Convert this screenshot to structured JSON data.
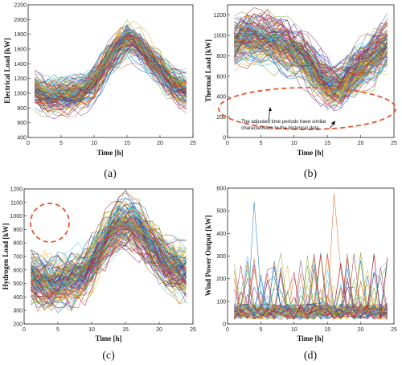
{
  "figure": {
    "captions": [
      "(a)",
      "(b)",
      "(c)",
      "(d)"
    ]
  },
  "chart_data": [
    {
      "type": "line",
      "panel": "(a)",
      "xlabel": "Time [h]",
      "ylabel": "Electrical Load [kW]",
      "xlim": [
        0,
        25
      ],
      "ylim": [
        400,
        2200
      ],
      "xticks": [
        "0",
        "5",
        "10",
        "15",
        "20",
        "25"
      ],
      "yticks": [
        "400",
        "600",
        "800",
        "1000",
        "1200",
        "1400",
        "1600",
        "1800",
        "2000",
        "2200"
      ],
      "x": [
        1,
        2,
        3,
        4,
        5,
        6,
        7,
        8,
        9,
        10,
        11,
        12,
        13,
        14,
        15,
        16,
        17,
        18,
        19,
        20,
        21,
        22,
        23,
        24
      ],
      "mean_profile": [
        1050,
        980,
        950,
        940,
        950,
        960,
        980,
        1000,
        1060,
        1150,
        1280,
        1420,
        1550,
        1650,
        1720,
        1700,
        1620,
        1520,
        1420,
        1320,
        1200,
        1120,
        1060,
        1020
      ],
      "spread": 300,
      "series_count": 120,
      "grid": false
    },
    {
      "type": "line",
      "panel": "(b)",
      "xlabel": "Time [h]",
      "ylabel": "Thermal Load [kW]",
      "xlim": [
        0,
        25
      ],
      "ylim": [
        0,
        1300
      ],
      "xticks": [
        "0",
        "5",
        "10",
        "15",
        "20",
        "25"
      ],
      "yticks": [
        "0",
        "200",
        "400",
        "600",
        "800",
        "1000",
        "1200"
      ],
      "x": [
        1,
        2,
        3,
        4,
        5,
        6,
        7,
        8,
        9,
        10,
        11,
        12,
        13,
        14,
        15,
        16,
        17,
        18,
        19,
        20,
        21,
        22,
        23,
        24
      ],
      "mean_profile": [
        920,
        960,
        980,
        970,
        960,
        950,
        930,
        900,
        860,
        820,
        780,
        720,
        650,
        580,
        520,
        480,
        500,
        560,
        620,
        680,
        740,
        800,
        860,
        900
      ],
      "spread": 300,
      "series_count": 120,
      "annotation": "The adjusted time periods have similar characteristics to the historical data",
      "grid": false
    },
    {
      "type": "line",
      "panel": "(c)",
      "xlabel": "Time [h]",
      "ylabel": "Hydrogen Load [kW]",
      "xlim": [
        0,
        25
      ],
      "ylim": [
        200,
        1200
      ],
      "xticks": [
        "0",
        "5",
        "10",
        "15",
        "20",
        "25"
      ],
      "yticks": [
        "200",
        "300",
        "400",
        "500",
        "600",
        "700",
        "800",
        "900",
        "1000",
        "1100",
        "1200"
      ],
      "x": [
        1,
        2,
        3,
        4,
        5,
        6,
        7,
        8,
        9,
        10,
        11,
        12,
        13,
        14,
        15,
        16,
        17,
        18,
        19,
        20,
        21,
        22,
        23,
        24
      ],
      "mean_profile": [
        560,
        520,
        500,
        490,
        500,
        510,
        520,
        540,
        580,
        640,
        720,
        800,
        870,
        920,
        950,
        940,
        900,
        840,
        780,
        720,
        660,
        620,
        590,
        570
      ],
      "spread": 260,
      "series_count": 120,
      "grid": false
    },
    {
      "type": "line",
      "panel": "(d)",
      "xlabel": "Time [h]",
      "ylabel": "Wind Power Output [kW]",
      "xlim": [
        0,
        25
      ],
      "ylim": [
        0,
        600
      ],
      "xticks": [
        "0",
        "5",
        "10",
        "15",
        "20",
        "25"
      ],
      "yticks": [
        "0",
        "100",
        "200",
        "300",
        "400",
        "500",
        "600"
      ],
      "x": [
        1,
        2,
        3,
        4,
        5,
        6,
        7,
        8,
        9,
        10,
        11,
        12,
        13,
        14,
        15,
        16,
        17,
        18,
        19,
        20,
        21,
        22,
        23,
        24
      ],
      "mean_profile": [
        40,
        40,
        40,
        40,
        40,
        40,
        40,
        40,
        40,
        40,
        40,
        40,
        40,
        40,
        40,
        40,
        40,
        40,
        40,
        40,
        40,
        40,
        40,
        40
      ],
      "spread": 120,
      "series_count": 60,
      "peak_values": [
        540,
        575
      ],
      "grid": false
    }
  ],
  "colors": {
    "axis": "#222222",
    "annotation_ellipse": "#e8552a",
    "palette": [
      "#0072bd",
      "#d95319",
      "#edb120",
      "#7e2f8e",
      "#77ac30",
      "#4dbeee",
      "#a2142f"
    ]
  }
}
